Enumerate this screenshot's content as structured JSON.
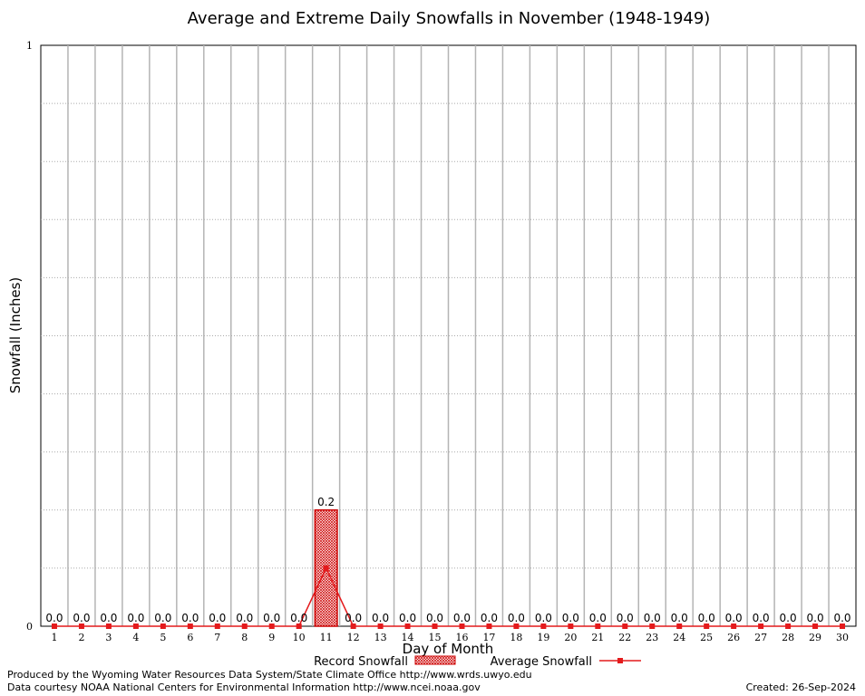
{
  "chart_data": {
    "type": "bar",
    "title": "Average and Extreme Daily Snowfalls in November (1948-1949)",
    "xlabel": "Day of Month",
    "ylabel": "Snowfall (Inches)",
    "ylim": [
      0,
      1
    ],
    "y_ticks": [
      "0",
      "1"
    ],
    "categories": [
      "1",
      "2",
      "3",
      "4",
      "5",
      "6",
      "7",
      "8",
      "9",
      "10",
      "11",
      "12",
      "13",
      "14",
      "15",
      "16",
      "17",
      "18",
      "19",
      "20",
      "21",
      "22",
      "23",
      "24",
      "25",
      "26",
      "27",
      "28",
      "29",
      "30"
    ],
    "series": [
      {
        "name": "Record Snowfall",
        "kind": "bar",
        "color": "#cc0000",
        "values": [
          0,
          0,
          0,
          0,
          0,
          0,
          0,
          0,
          0,
          0,
          0.2,
          0,
          0,
          0,
          0,
          0,
          0,
          0,
          0,
          0,
          0,
          0,
          0,
          0,
          0,
          0,
          0,
          0,
          0,
          0
        ],
        "labels": [
          "0.0",
          "0.0",
          "0.0",
          "0.0",
          "0.0",
          "0.0",
          "0.0",
          "0.0",
          "0.0",
          "0.0",
          "0.2",
          "0.0",
          "0.0",
          "0.0",
          "0.0",
          "0.0",
          "0.0",
          "0.0",
          "0.0",
          "0.0",
          "0.0",
          "0.0",
          "0.0",
          "0.0",
          "0.0",
          "0.0",
          "0.0",
          "0.0",
          "0.0",
          "0.0"
        ]
      },
      {
        "name": "Average Snowfall",
        "kind": "line",
        "color": "#e41a1c",
        "values": [
          0,
          0,
          0,
          0,
          0,
          0,
          0,
          0,
          0,
          0,
          0.1,
          0,
          0,
          0,
          0,
          0,
          0,
          0,
          0,
          0,
          0,
          0,
          0,
          0,
          0,
          0,
          0,
          0,
          0,
          0
        ]
      }
    ],
    "grid": true,
    "legend_position": "bottom-center"
  },
  "footer": {
    "produced_by": "Produced by the Wyoming Water Resources Data System/State Climate Office http://www.wrds.uwyo.edu",
    "data_courtesy": "Data courtesy NOAA National Centers for Environmental Information http://www.ncei.noaa.gov",
    "created": "Created:  26-Sep-2024"
  }
}
